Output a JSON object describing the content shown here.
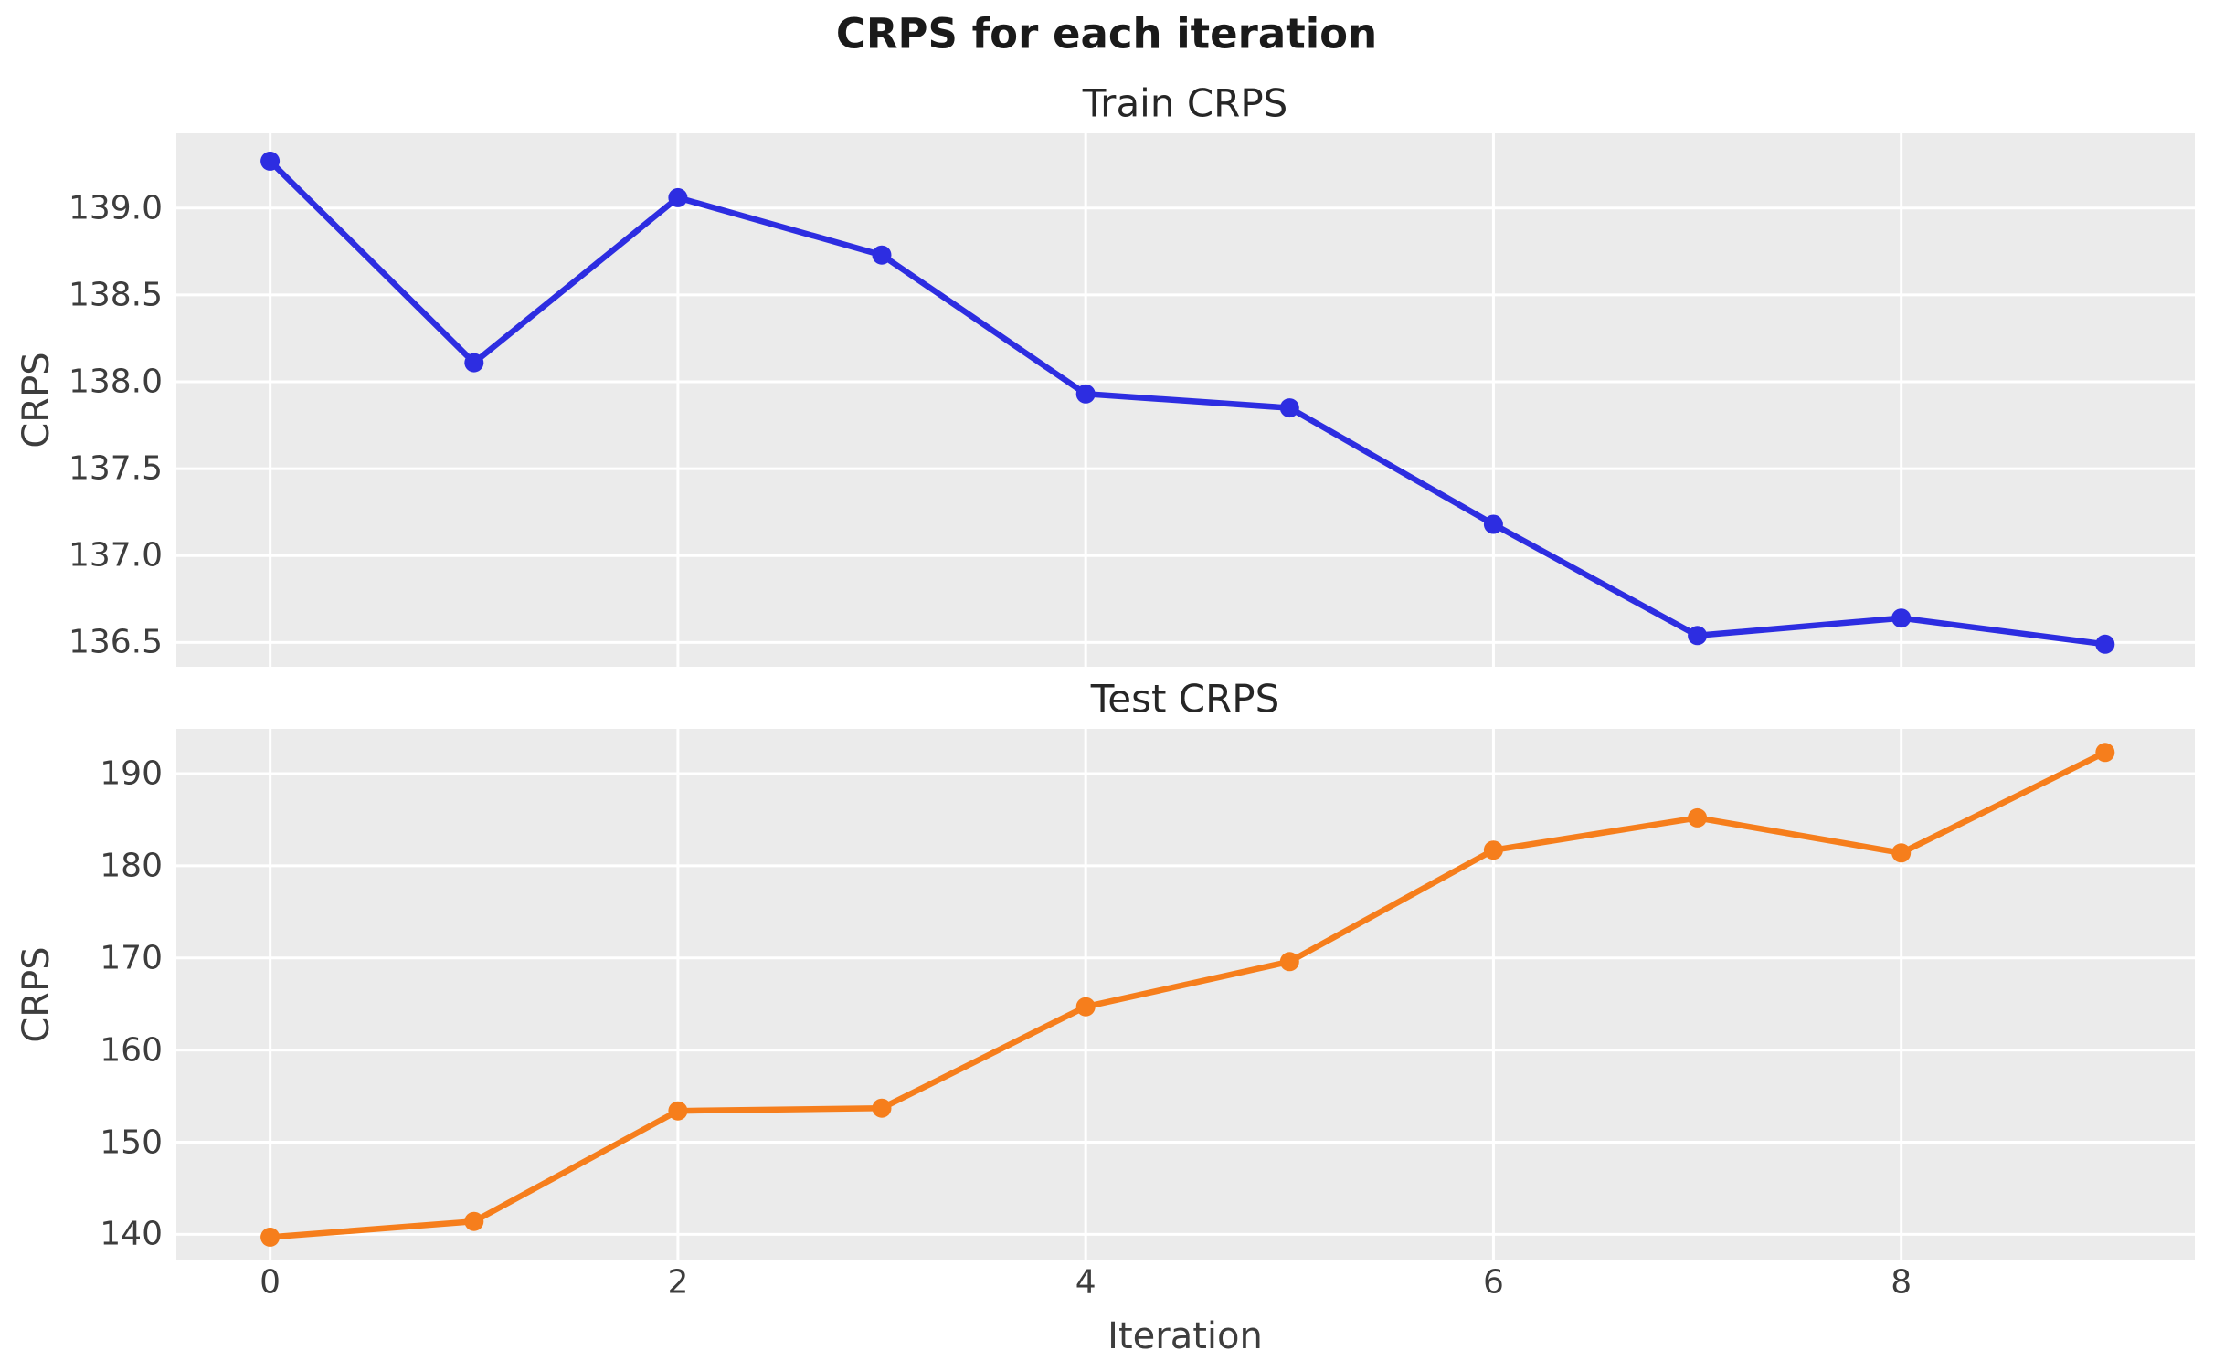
{
  "figure": {
    "suptitle": "CRPS for each iteration",
    "xlabel": "Iteration",
    "background": "#ffffff",
    "plot_background": "#ebebeb",
    "gridline_color": "#ffffff"
  },
  "chart_data": [
    {
      "type": "line",
      "title": "Train CRPS",
      "ylabel": "CRPS",
      "series_color": "#2d2de1",
      "marker": "circle",
      "x": [
        0,
        1,
        2,
        3,
        4,
        5,
        6,
        7,
        8,
        9
      ],
      "values": [
        139.27,
        138.11,
        139.06,
        138.73,
        137.93,
        137.85,
        137.18,
        136.54,
        136.64,
        136.49
      ],
      "yticks": [
        139.0,
        138.5,
        138.0,
        137.5,
        137.0,
        136.5
      ],
      "ytick_labels": [
        "139.0",
        "138.5",
        "138.0",
        "137.5",
        "137.0",
        "136.5"
      ],
      "xticks": [
        0,
        2,
        4,
        6,
        8
      ],
      "xtick_labels": [],
      "show_xtick_labels": false,
      "ylim": [
        136.36,
        139.43
      ],
      "xlim": [
        -0.46,
        9.44
      ],
      "grid": true,
      "legend_position": "none"
    },
    {
      "type": "line",
      "title": "Test CRPS",
      "ylabel": "CRPS",
      "series_color": "#f67e1c",
      "marker": "circle",
      "x": [
        0,
        1,
        2,
        3,
        4,
        5,
        6,
        7,
        8,
        9
      ],
      "values": [
        139.7,
        141.4,
        153.4,
        153.7,
        164.7,
        169.6,
        181.7,
        185.2,
        181.4,
        192.3
      ],
      "yticks": [
        190,
        180,
        170,
        160,
        150,
        140
      ],
      "ytick_labels": [
        "190",
        "180",
        "170",
        "160",
        "150",
        "140"
      ],
      "xticks": [
        0,
        2,
        4,
        6,
        8
      ],
      "xtick_labels": [
        "0",
        "2",
        "4",
        "6",
        "8"
      ],
      "show_xtick_labels": true,
      "ylim": [
        137.16,
        194.86
      ],
      "xlim": [
        -0.46,
        9.44
      ],
      "grid": true,
      "legend_position": "none"
    }
  ]
}
